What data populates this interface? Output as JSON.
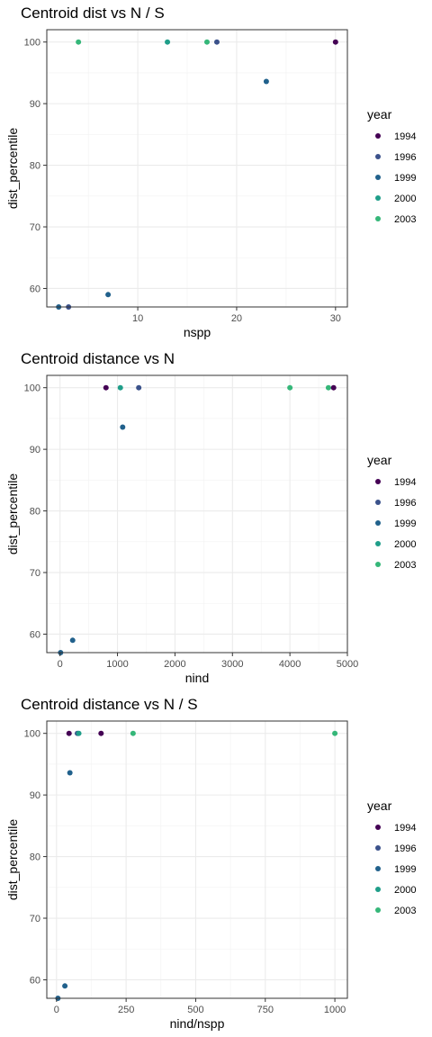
{
  "legend": {
    "title": "year",
    "years": [
      "1994",
      "1996",
      "1999",
      "2000",
      "2003"
    ],
    "colors": [
      "#440154",
      "#3b528b",
      "#21618c",
      "#1f9e89",
      "#35b779"
    ]
  },
  "chart_data": [
    {
      "type": "scatter",
      "title": "Centroid dist vs N / S",
      "xlabel": "nspp",
      "ylabel": "dist_percentile",
      "xlim": [
        0.8,
        31.2
      ],
      "ylim": [
        57,
        102
      ],
      "x_ticks": [
        10,
        20,
        30
      ],
      "y_ticks": [
        60,
        70,
        80,
        90,
        100
      ],
      "grid": true,
      "legend_position": "right",
      "points": [
        {
          "x": 2,
          "y": 57,
          "year": "1999"
        },
        {
          "x": 3,
          "y": 57,
          "year": "1996"
        },
        {
          "x": 7,
          "y": 59,
          "year": "1999"
        },
        {
          "x": 4,
          "y": 100,
          "year": "2003"
        },
        {
          "x": 13,
          "y": 100,
          "year": "2000"
        },
        {
          "x": 17,
          "y": 100,
          "year": "2003"
        },
        {
          "x": 18,
          "y": 100,
          "year": "1996"
        },
        {
          "x": 23,
          "y": 93.6,
          "year": "1999"
        },
        {
          "x": 30,
          "y": 100,
          "year": "1994"
        }
      ]
    },
    {
      "type": "scatter",
      "title": "Centroid distance vs N",
      "xlabel": "nind",
      "ylabel": "dist_percentile",
      "xlim": [
        -230,
        5000
      ],
      "ylim": [
        57,
        102
      ],
      "x_ticks": [
        0,
        1000,
        2000,
        3000,
        4000,
        5000
      ],
      "y_ticks": [
        60,
        70,
        80,
        90,
        100
      ],
      "grid": true,
      "legend_position": "right",
      "points": [
        {
          "x": 10,
          "y": 57,
          "year": "1999"
        },
        {
          "x": 220,
          "y": 59,
          "year": "1999"
        },
        {
          "x": 800,
          "y": 100,
          "year": "1994"
        },
        {
          "x": 1050,
          "y": 100,
          "year": "2000"
        },
        {
          "x": 1370,
          "y": 100,
          "year": "1996"
        },
        {
          "x": 1090,
          "y": 93.6,
          "year": "1999"
        },
        {
          "x": 4000,
          "y": 100,
          "year": "2003"
        },
        {
          "x": 4670,
          "y": 100,
          "year": "2003"
        },
        {
          "x": 4760,
          "y": 100,
          "year": "1994"
        }
      ]
    },
    {
      "type": "scatter",
      "title": "Centroid distance vs N / S",
      "xlabel": "nind/nspp",
      "ylabel": "dist_percentile",
      "xlim": [
        -35,
        1045
      ],
      "ylim": [
        57,
        102
      ],
      "x_ticks": [
        0,
        250,
        500,
        750,
        1000
      ],
      "y_ticks": [
        60,
        70,
        80,
        90,
        100
      ],
      "grid": true,
      "legend_position": "right",
      "points": [
        {
          "x": 5,
          "y": 57,
          "year": "1999"
        },
        {
          "x": 30,
          "y": 59,
          "year": "1999"
        },
        {
          "x": 45,
          "y": 100,
          "year": "1994"
        },
        {
          "x": 75,
          "y": 100,
          "year": "1996"
        },
        {
          "x": 80,
          "y": 100,
          "year": "2000"
        },
        {
          "x": 160,
          "y": 100,
          "year": "1994"
        },
        {
          "x": 275,
          "y": 100,
          "year": "2003"
        },
        {
          "x": 48,
          "y": 93.6,
          "year": "1999"
        },
        {
          "x": 1000,
          "y": 100,
          "year": "2003"
        }
      ]
    }
  ]
}
